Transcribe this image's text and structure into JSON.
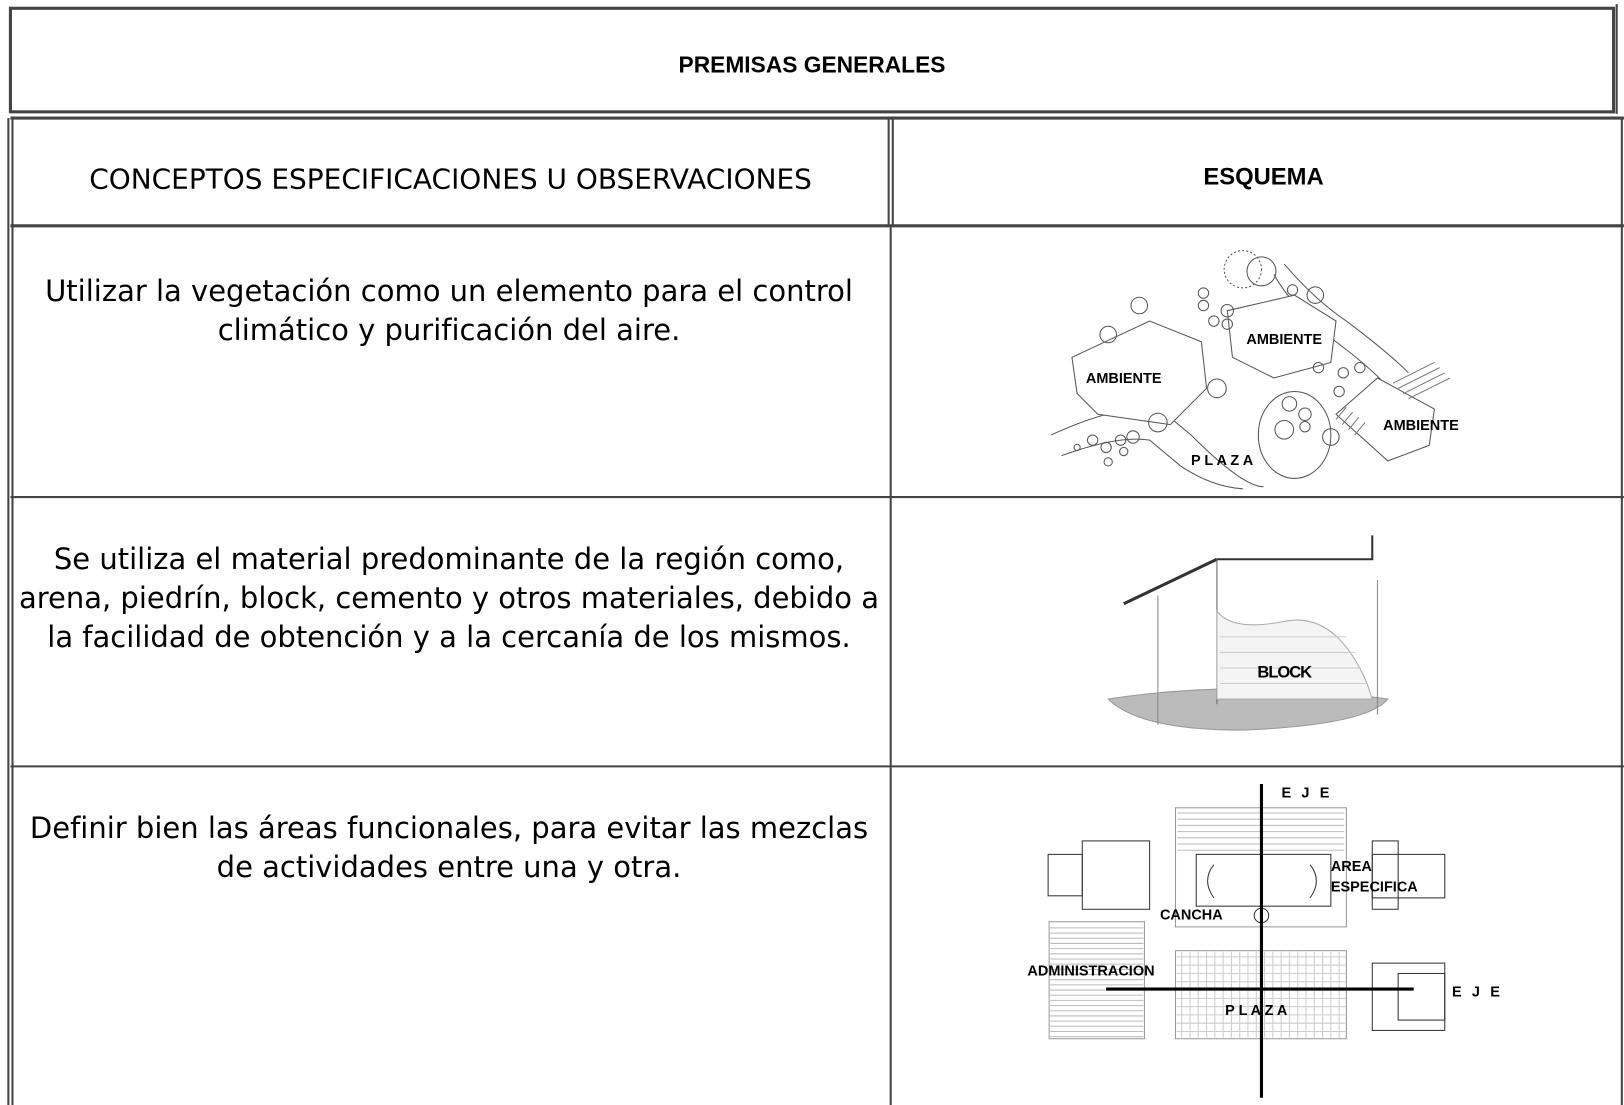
{
  "header": {
    "title": "PREMISAS GENERALES"
  },
  "table": {
    "columns": [
      "CONCEPTOS ESPECIFICACIONES U OBSERVACIONES",
      "ESQUEMA"
    ],
    "rows": [
      {
        "text": "Utilizar la vegetación como un elemento para el control climático y purificación del aire.",
        "diagram_labels": [
          "AMBIENTE",
          "AMBIENTE",
          "AMBIENTE",
          "P L A Z A"
        ]
      },
      {
        "text": "Se utiliza el material predominante de la región como, arena, piedrín, block, cemento y otros materiales, debido a la facilidad de obtención y a la cercanía de los mismos.",
        "diagram_labels": [
          "BLOCK"
        ]
      },
      {
        "text": "Definir bien las áreas funcionales, para evitar las mezclas de actividades entre una y otra.",
        "diagram_labels": [
          "E J E",
          "AREA",
          "ESPECIFICA",
          "CANCHA",
          "ADMINISTRACION",
          "P L A Z A",
          "E J E"
        ]
      }
    ]
  }
}
